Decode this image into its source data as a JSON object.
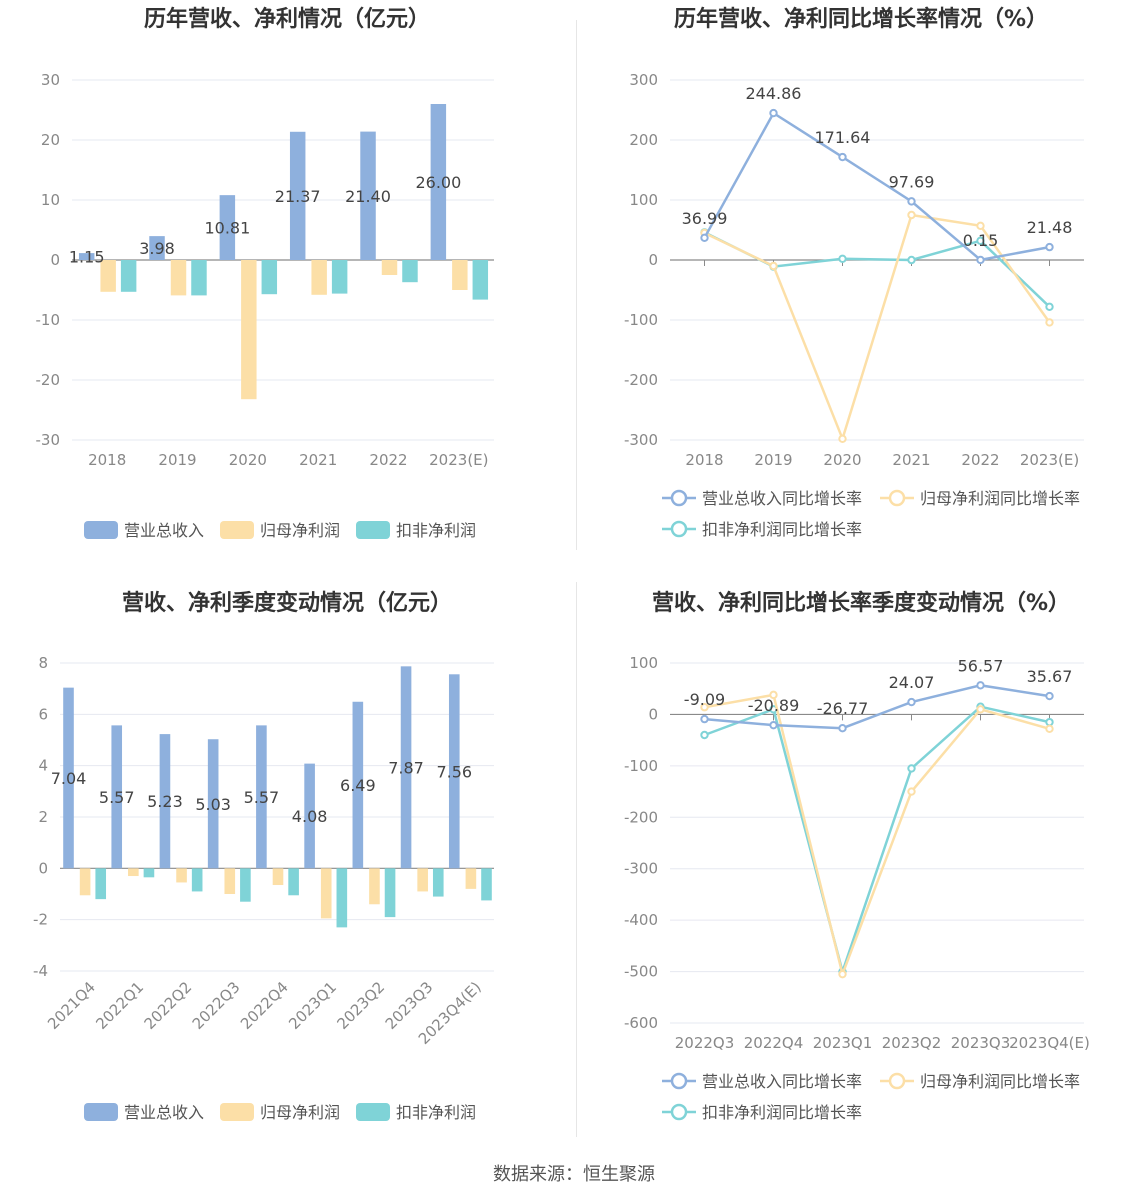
{
  "colors": {
    "revenue": "#8eb0dd",
    "parent_profit": "#fcdfa7",
    "deducted_profit": "#7fd3d7",
    "axis": "#8a8a8a",
    "grid": "#e6e8f0",
    "label": "#444444",
    "tick": "#888888"
  },
  "source": "数据来源：恒生聚源",
  "chart_data": [
    {
      "type": "bar",
      "title": "历年营收、净利情况（亿元）",
      "categories": [
        "2018",
        "2019",
        "2020",
        "2021",
        "2022",
        "2023(E)"
      ],
      "ylim": [
        -30,
        30
      ],
      "yticks": [
        30,
        20,
        10,
        0,
        -10,
        -20,
        -30
      ],
      "series": [
        {
          "name": "营业总收入",
          "values": [
            1.15,
            3.98,
            10.81,
            21.37,
            21.4,
            26.0
          ],
          "labels": [
            "1.15",
            "3.98",
            "10.81",
            "21.37",
            "21.40",
            "26.00"
          ]
        },
        {
          "name": "归母净利润",
          "values": [
            -5.3,
            -5.9,
            -23.2,
            -5.8,
            -2.5,
            -5.0
          ]
        },
        {
          "name": "扣非净利润",
          "values": [
            -5.3,
            -5.9,
            -5.7,
            -5.6,
            -3.7,
            -6.6
          ]
        }
      ],
      "legend": [
        "营业总收入",
        "归母净利润",
        "扣非净利润"
      ]
    },
    {
      "type": "line",
      "title": "历年营收、净利同比增长率情况（%）",
      "categories": [
        "2018",
        "2019",
        "2020",
        "2021",
        "2022",
        "2023(E)"
      ],
      "ylim": [
        -300,
        300
      ],
      "yticks": [
        300,
        200,
        100,
        0,
        -100,
        -200,
        -300
      ],
      "series": [
        {
          "name": "营业总收入同比增长率",
          "values": [
            36.99,
            244.86,
            171.64,
            97.69,
            0.15,
            21.48
          ],
          "labels": [
            "36.99",
            "244.86",
            "171.64",
            "97.69",
            "0.15",
            "21.48"
          ]
        },
        {
          "name": "归母净利润同比增长率",
          "values": [
            45,
            -10,
            -298,
            75,
            57,
            -104
          ]
        },
        {
          "name": "扣非净利润同比增长率",
          "values": [
            46,
            -11,
            2,
            0,
            32,
            -78
          ]
        }
      ],
      "legend": [
        "营业总收入同比增长率",
        "归母净利润同比增长率",
        "扣非净利润同比增长率"
      ]
    },
    {
      "type": "bar",
      "title": "营收、净利季度变动情况（亿元）",
      "categories": [
        "2021Q4",
        "2022Q1",
        "2022Q2",
        "2022Q3",
        "2022Q4",
        "2023Q1",
        "2023Q2",
        "2023Q3",
        "2023Q4(E)"
      ],
      "ylim": [
        -4,
        8
      ],
      "yticks": [
        8,
        6,
        4,
        2,
        0,
        -2,
        -4
      ],
      "series": [
        {
          "name": "营业总收入",
          "values": [
            7.04,
            5.57,
            5.23,
            5.03,
            5.57,
            4.08,
            6.49,
            7.87,
            7.56
          ],
          "labels": [
            "7.04",
            "5.57",
            "5.23",
            "5.03",
            "5.57",
            "4.08",
            "6.49",
            "7.87",
            "7.56"
          ]
        },
        {
          "name": "归母净利润",
          "values": [
            -1.05,
            -0.3,
            -0.55,
            -1.0,
            -0.65,
            -1.95,
            -1.4,
            -0.9,
            -0.8
          ]
        },
        {
          "name": "扣非净利润",
          "values": [
            -1.2,
            -0.35,
            -0.9,
            -1.3,
            -1.05,
            -2.3,
            -1.9,
            -1.1,
            -1.25
          ]
        }
      ],
      "legend": [
        "营业总收入",
        "归母净利润",
        "扣非净利润"
      ]
    },
    {
      "type": "line",
      "title": "营收、净利同比增长率季度变动情况（%）",
      "categories": [
        "2022Q3",
        "2022Q4",
        "2023Q1",
        "2023Q2",
        "2023Q3",
        "2023Q4(E)"
      ],
      "ylim": [
        -600,
        100
      ],
      "yticks": [
        100,
        0,
        -100,
        -200,
        -300,
        -400,
        -500,
        -600
      ],
      "series": [
        {
          "name": "营业总收入同比增长率",
          "values": [
            -9.09,
            -20.89,
            -26.77,
            24.07,
            56.57,
            35.67
          ],
          "labels": [
            "-9.09",
            "-20.89",
            "-26.77",
            "24.07",
            "56.57",
            "35.67"
          ]
        },
        {
          "name": "归母净利润同比增长率",
          "values": [
            14,
            38,
            -505,
            -150,
            10,
            -28
          ]
        },
        {
          "name": "扣非净利润同比增长率",
          "values": [
            -40,
            10,
            -500,
            -105,
            15,
            -15
          ]
        }
      ],
      "legend": [
        "营业总收入同比增长率",
        "归母净利润同比增长率",
        "扣非净利润同比增长率"
      ]
    }
  ]
}
